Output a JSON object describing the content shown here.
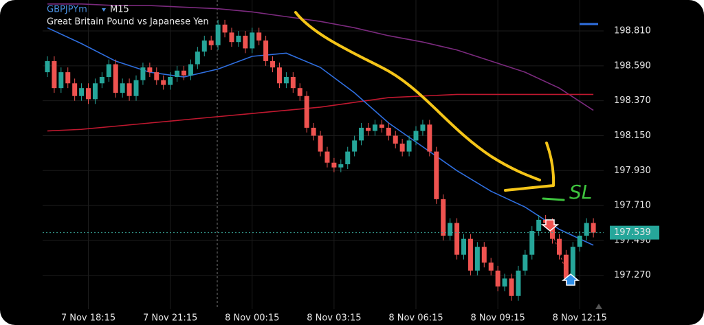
{
  "chart_data": {
    "type": "candlestick",
    "title": "GBPJPYm",
    "timeframe": "M15",
    "subtitle": "Great Britain Pound vs Japanese Yen",
    "annotation": "SL",
    "up_color": "#26a69a",
    "down_color": "#ef5350",
    "grid": true,
    "ylim": [
      197.1,
      199.005
    ],
    "yticks": [
      {
        "value": 198.81,
        "label": "198.810"
      },
      {
        "value": 198.59,
        "label": "198.590"
      },
      {
        "value": 198.37,
        "label": "198.370"
      },
      {
        "value": 198.15,
        "label": "198.150"
      },
      {
        "value": 197.93,
        "label": "197.930"
      },
      {
        "value": 197.71,
        "label": "197.710"
      },
      {
        "value": 197.49,
        "label": "197.490"
      },
      {
        "value": 197.27,
        "label": "197.270"
      }
    ],
    "current_price": {
      "value": 197.539,
      "label": "197.539"
    },
    "xlim": [
      -0.7,
      81.5
    ],
    "xticks": [
      {
        "value": 6,
        "label": "7 Nov 18:15"
      },
      {
        "value": 18,
        "label": "7 Nov 21:15"
      },
      {
        "value": 30,
        "label": "8 Nov 00:15"
      },
      {
        "value": 42,
        "label": "8 Nov 03:15"
      },
      {
        "value": 54,
        "label": "8 Nov 06:15"
      },
      {
        "value": 66,
        "label": "8 Nov 09:15"
      },
      {
        "value": 78,
        "label": "8 Nov 12:15"
      }
    ],
    "open": [
      198.55,
      198.62,
      198.45,
      198.55,
      198.48,
      198.4,
      198.45,
      198.38,
      198.48,
      198.52,
      198.6,
      198.42,
      198.48,
      198.4,
      198.5,
      198.58,
      198.55,
      198.5,
      198.47,
      198.52,
      198.56,
      198.53,
      198.6,
      198.68,
      198.75,
      198.72,
      198.85,
      198.8,
      198.74,
      198.78,
      198.7,
      198.8,
      198.75,
      198.62,
      198.58,
      198.48,
      198.52,
      198.45,
      198.4,
      198.2,
      198.15,
      198.05,
      197.98,
      197.95,
      197.97,
      198.05,
      198.12,
      198.2,
      198.18,
      198.22,
      198.2,
      198.15,
      198.1,
      198.05,
      198.12,
      198.18,
      198.22,
      198.05,
      197.75,
      197.52,
      197.6,
      197.4,
      197.5,
      197.3,
      197.45,
      197.35,
      197.3,
      197.2,
      197.25,
      197.14,
      197.3,
      197.4,
      197.55,
      197.62,
      197.6,
      197.5,
      197.4,
      197.25,
      197.45,
      197.52,
      197.6
    ],
    "high": [
      198.65,
      198.65,
      198.58,
      198.58,
      198.51,
      198.48,
      198.48,
      198.51,
      198.55,
      198.63,
      198.63,
      198.51,
      198.51,
      198.53,
      198.61,
      198.61,
      198.58,
      198.53,
      198.55,
      198.59,
      198.59,
      198.63,
      198.71,
      198.78,
      198.78,
      198.88,
      198.88,
      198.83,
      198.81,
      198.81,
      198.83,
      198.83,
      198.78,
      198.65,
      198.61,
      198.55,
      198.55,
      198.48,
      198.43,
      198.23,
      198.18,
      198.08,
      198.01,
      198.0,
      198.08,
      198.15,
      198.23,
      198.23,
      198.25,
      198.25,
      198.23,
      198.18,
      198.13,
      198.15,
      198.21,
      198.25,
      198.25,
      198.08,
      197.78,
      197.63,
      197.63,
      197.53,
      197.53,
      197.48,
      197.48,
      197.38,
      197.33,
      197.28,
      197.28,
      197.33,
      197.43,
      197.58,
      197.65,
      197.65,
      197.63,
      197.53,
      197.43,
      197.48,
      197.55,
      197.63,
      197.63
    ],
    "low": [
      198.52,
      198.42,
      198.42,
      198.45,
      198.37,
      198.37,
      198.35,
      198.35,
      198.45,
      198.49,
      198.39,
      198.39,
      198.37,
      198.37,
      198.47,
      198.52,
      198.47,
      198.44,
      198.44,
      198.49,
      198.5,
      198.5,
      198.57,
      198.65,
      198.69,
      198.69,
      198.77,
      198.71,
      198.71,
      198.67,
      198.67,
      198.72,
      198.59,
      198.55,
      198.45,
      198.45,
      198.42,
      198.37,
      198.17,
      198.12,
      198.02,
      197.95,
      197.92,
      197.92,
      197.94,
      198.02,
      198.09,
      198.15,
      198.15,
      198.17,
      198.12,
      198.07,
      198.02,
      198.02,
      198.09,
      198.15,
      198.02,
      197.72,
      197.49,
      197.49,
      197.37,
      197.37,
      197.27,
      197.27,
      197.32,
      197.27,
      197.17,
      197.17,
      197.11,
      197.11,
      197.27,
      197.37,
      197.52,
      197.57,
      197.47,
      197.37,
      197.22,
      197.22,
      197.42,
      197.49,
      197.509
    ],
    "close": [
      198.62,
      198.45,
      198.55,
      198.48,
      198.4,
      198.45,
      198.38,
      198.48,
      198.52,
      198.6,
      198.42,
      198.48,
      198.4,
      198.5,
      198.58,
      198.55,
      198.5,
      198.47,
      198.52,
      198.56,
      198.53,
      198.6,
      198.68,
      198.75,
      198.72,
      198.85,
      198.8,
      198.74,
      198.78,
      198.7,
      198.8,
      198.75,
      198.62,
      198.58,
      198.48,
      198.52,
      198.45,
      198.4,
      198.2,
      198.15,
      198.05,
      197.98,
      197.95,
      197.97,
      198.05,
      198.12,
      198.2,
      198.18,
      198.22,
      198.2,
      198.15,
      198.1,
      198.05,
      198.12,
      198.18,
      198.22,
      198.05,
      197.75,
      197.52,
      197.6,
      197.4,
      197.5,
      197.3,
      197.45,
      197.35,
      197.3,
      197.2,
      197.25,
      197.14,
      197.3,
      197.4,
      197.55,
      197.62,
      197.6,
      197.5,
      197.4,
      197.25,
      197.45,
      197.52,
      197.6,
      197.539
    ],
    "ma_x": [
      0,
      5,
      10,
      15,
      20,
      25,
      30,
      35,
      40,
      45,
      50,
      55,
      60,
      65,
      70,
      75,
      80
    ],
    "moving_averages": [
      {
        "color": "#7b2a7e",
        "values": [
          198.98,
          198.98,
          198.97,
          198.97,
          198.96,
          198.95,
          198.93,
          198.9,
          198.87,
          198.83,
          198.78,
          198.74,
          198.69,
          198.62,
          198.55,
          198.45,
          198.31
        ]
      },
      {
        "color": "#c0182f",
        "values": [
          198.18,
          198.19,
          198.21,
          198.23,
          198.25,
          198.27,
          198.29,
          198.31,
          198.33,
          198.36,
          198.39,
          198.4,
          198.41,
          198.41,
          198.41,
          198.41,
          198.41
        ]
      },
      {
        "color": "#2f6fe0",
        "values": [
          198.83,
          198.73,
          198.62,
          198.55,
          198.52,
          198.57,
          198.65,
          198.67,
          198.58,
          198.42,
          198.23,
          198.08,
          197.93,
          197.8,
          197.7,
          197.56,
          197.46
        ]
      }
    ]
  }
}
